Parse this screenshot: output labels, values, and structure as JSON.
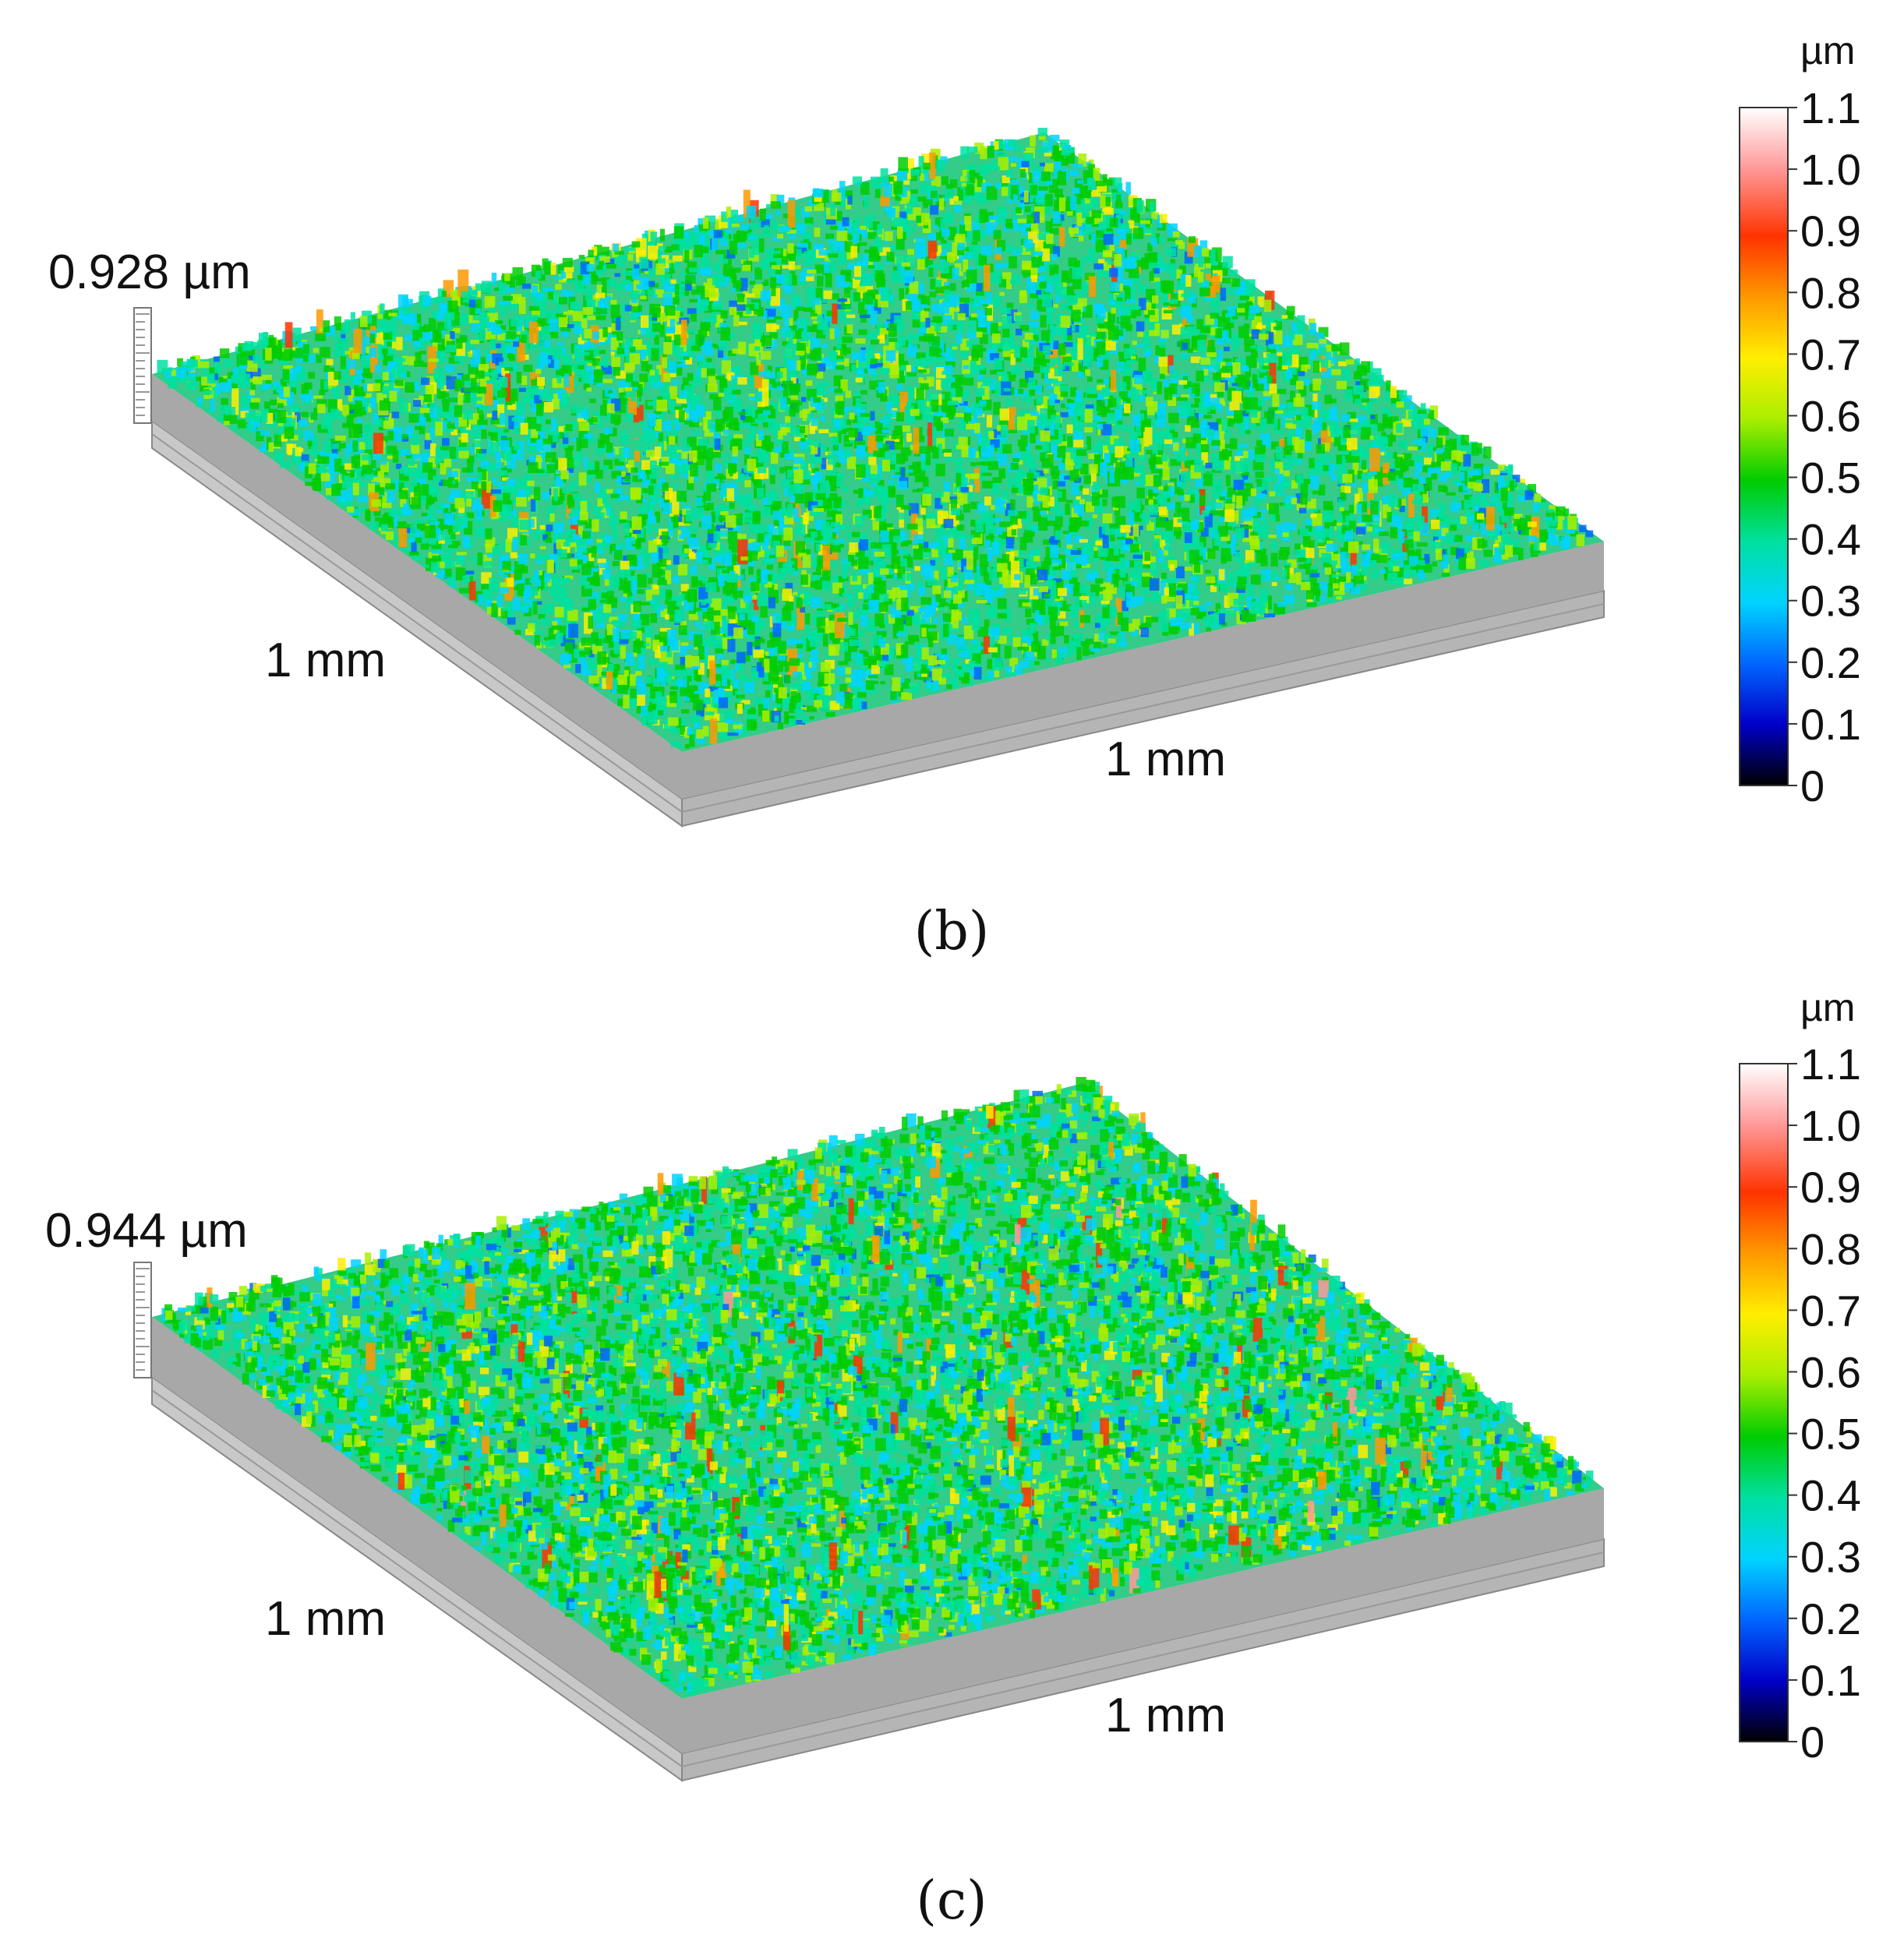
{
  "figure": {
    "panels": [
      {
        "id": "b",
        "label": "(b)"
      },
      {
        "id": "c",
        "label": "(c)"
      }
    ]
  },
  "chart_data": [
    {
      "type": "heatmap",
      "panel": "(b)",
      "title": "",
      "max_height_label": "0.928 µm",
      "x_extent_label": "1 mm",
      "y_extent_label": "1 mm",
      "z_max": 0.928,
      "x_extent": [
        0,
        1
      ],
      "y_extent": [
        0,
        1
      ],
      "colorbar": {
        "unit": "µm",
        "range": [
          0,
          1.1
        ],
        "ticks": [
          "0",
          "0.1",
          "0.2",
          "0.3",
          "0.4",
          "0.5",
          "0.6",
          "0.7",
          "0.8",
          "0.9",
          "1.0",
          "1.1"
        ],
        "colors": [
          "#000000",
          "#0000c8",
          "#0066ff",
          "#00d4ff",
          "#00e0a0",
          "#00cc00",
          "#aaee00",
          "#ffee00",
          "#ff9900",
          "#ff3300",
          "#ff9999",
          "#ffffff"
        ]
      }
    },
    {
      "type": "heatmap",
      "panel": "(c)",
      "title": "",
      "max_height_label": "0.944 µm",
      "x_extent_label": "1 mm",
      "y_extent_label": "1 mm",
      "z_max": 0.944,
      "x_extent": [
        0,
        1
      ],
      "y_extent": [
        0,
        1
      ],
      "colorbar": {
        "unit": "µm",
        "range": [
          0,
          1.1
        ],
        "ticks": [
          "0",
          "0.1",
          "0.2",
          "0.3",
          "0.4",
          "0.5",
          "0.6",
          "0.7",
          "0.8",
          "0.9",
          "1.0",
          "1.1"
        ],
        "colors": [
          "#000000",
          "#0000c8",
          "#0066ff",
          "#00d4ff",
          "#00e0a0",
          "#00cc00",
          "#aaee00",
          "#ffee00",
          "#ff9900",
          "#ff3300",
          "#ff9999",
          "#ffffff"
        ]
      }
    }
  ]
}
